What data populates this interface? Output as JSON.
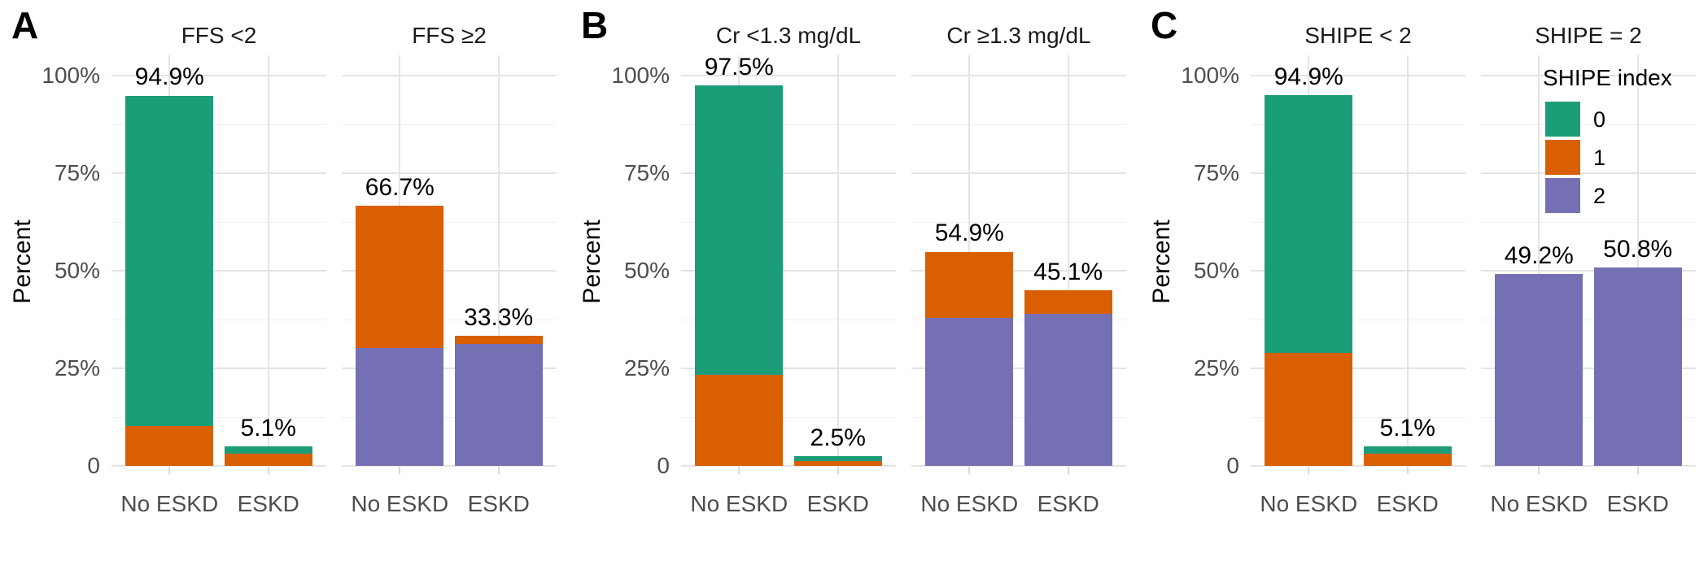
{
  "chart_data": {
    "type": "bar",
    "stacked": true,
    "orientation": "vertical",
    "unit": "percent",
    "ylim": [
      0,
      100
    ],
    "grid": "on",
    "y_axis": {
      "title": "Percent",
      "ticks": [
        {
          "value": 0,
          "label": "0"
        },
        {
          "value": 25,
          "label": "25%"
        },
        {
          "value": 50,
          "label": "50%"
        },
        {
          "value": 75,
          "label": "75%"
        },
        {
          "value": 100,
          "label": "100%"
        }
      ],
      "minor_gridlines": [
        12.5,
        37.5,
        62.5,
        87.5
      ]
    },
    "x_categories": [
      "No ESKD",
      "ESKD"
    ],
    "series_colors": {
      "0": "#1B9E77",
      "1": "#D95F02",
      "2": "#7570B3"
    },
    "legend": {
      "title": "SHIPE index",
      "position": "inside top-right of panel C",
      "items": [
        {
          "label": "0",
          "key": "0"
        },
        {
          "label": "1",
          "key": "1"
        },
        {
          "label": "2",
          "key": "2"
        }
      ]
    },
    "panels": [
      {
        "letter": "A",
        "facets": [
          {
            "title": "FFS <2",
            "bars": [
              {
                "category": "No ESKD",
                "total": 94.9,
                "total_label": "94.9%",
                "segments": [
                  {
                    "key": "1",
                    "value": 10.2
                  },
                  {
                    "key": "0",
                    "value": 84.7
                  }
                ]
              },
              {
                "category": "ESKD",
                "total": 5.1,
                "total_label": "5.1%",
                "segments": [
                  {
                    "key": "1",
                    "value": 3.1
                  },
                  {
                    "key": "0",
                    "value": 2.0
                  }
                ]
              }
            ]
          },
          {
            "title": "FFS ≥2",
            "bars": [
              {
                "category": "No ESKD",
                "total": 66.7,
                "total_label": "66.7%",
                "segments": [
                  {
                    "key": "2",
                    "value": 30.3
                  },
                  {
                    "key": "1",
                    "value": 36.4
                  }
                ]
              },
              {
                "category": "ESKD",
                "total": 33.3,
                "total_label": "33.3%",
                "segments": [
                  {
                    "key": "2",
                    "value": 31.2
                  },
                  {
                    "key": "1",
                    "value": 2.1
                  }
                ]
              }
            ]
          }
        ]
      },
      {
        "letter": "B",
        "facets": [
          {
            "title": "Cr <1.3 mg/dL",
            "bars": [
              {
                "category": "No ESKD",
                "total": 97.5,
                "total_label": "97.5%",
                "segments": [
                  {
                    "key": "1",
                    "value": 23.4
                  },
                  {
                    "key": "0",
                    "value": 74.1
                  }
                ]
              },
              {
                "category": "ESKD",
                "total": 2.5,
                "total_label": "2.5%",
                "segments": [
                  {
                    "key": "1",
                    "value": 1.2
                  },
                  {
                    "key": "0",
                    "value": 1.3
                  }
                ]
              }
            ]
          },
          {
            "title": "Cr ≥1.3 mg/dL",
            "bars": [
              {
                "category": "No ESKD",
                "total": 54.9,
                "total_label": "54.9%",
                "segments": [
                  {
                    "key": "2",
                    "value": 37.9
                  },
                  {
                    "key": "1",
                    "value": 17.0
                  }
                ]
              },
              {
                "category": "ESKD",
                "total": 45.1,
                "total_label": "45.1%",
                "segments": [
                  {
                    "key": "2",
                    "value": 38.9
                  },
                  {
                    "key": "1",
                    "value": 6.2
                  }
                ]
              }
            ]
          }
        ]
      },
      {
        "letter": "C",
        "facets": [
          {
            "title": "SHIPE < 2",
            "bars": [
              {
                "category": "No ESKD",
                "total": 94.9,
                "total_label": "94.9%",
                "segments": [
                  {
                    "key": "1",
                    "value": 28.9
                  },
                  {
                    "key": "0",
                    "value": 66.0
                  }
                ]
              },
              {
                "category": "ESKD",
                "total": 5.1,
                "total_label": "5.1%",
                "segments": [
                  {
                    "key": "1",
                    "value": 3.1
                  },
                  {
                    "key": "0",
                    "value": 2.0
                  }
                ]
              }
            ]
          },
          {
            "title": "SHIPE = 2",
            "bars": [
              {
                "category": "No ESKD",
                "total": 49.2,
                "total_label": "49.2%",
                "segments": [
                  {
                    "key": "2",
                    "value": 49.2
                  }
                ]
              },
              {
                "category": "ESKD",
                "total": 50.8,
                "total_label": "50.8%",
                "segments": [
                  {
                    "key": "2",
                    "value": 50.8
                  }
                ]
              }
            ]
          }
        ]
      }
    ]
  }
}
